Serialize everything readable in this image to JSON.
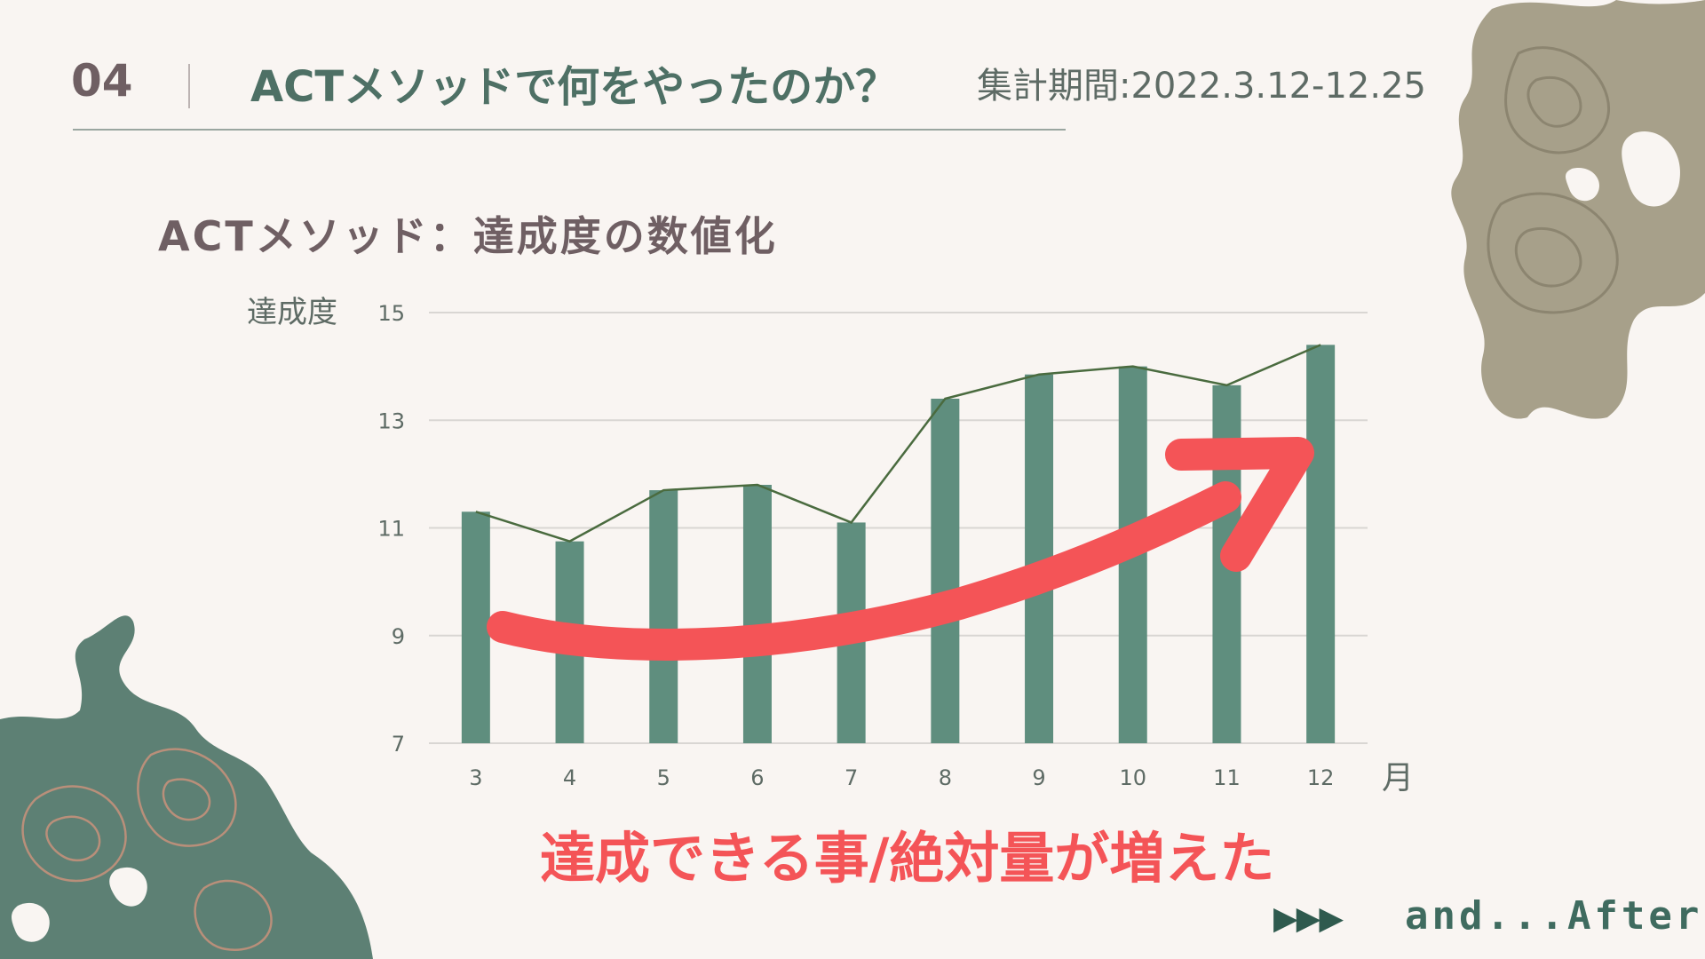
{
  "header": {
    "section_number": "04",
    "title": "ACTメソッドで何をやったのか？",
    "period": "集計期間:2022.3.12-12.25"
  },
  "chart_title": "ACTメソッド：達成度の数値化",
  "chart_data": {
    "type": "bar",
    "categories": [
      "3",
      "4",
      "5",
      "6",
      "7",
      "8",
      "9",
      "10",
      "11",
      "12"
    ],
    "values": [
      11.3,
      10.75,
      11.7,
      11.8,
      11.1,
      13.4,
      13.85,
      14.0,
      13.65,
      14.4
    ],
    "line_overlay": true,
    "ylabel": "達成度",
    "xlabel": "月",
    "ylim": [
      7,
      15
    ],
    "yticks": [
      "7",
      "9",
      "11",
      "13",
      "15"
    ],
    "grid": true,
    "colors": {
      "bar": "#5f8e7e",
      "line": "#4a6b3f",
      "grid": "#d9d6d3",
      "trend_arrow": "#f45457"
    }
  },
  "conclusion": "達成できる事/絶対量が増えた",
  "footer": {
    "next_arrows": "▶▶▶",
    "next_label": "and...After?"
  },
  "decorations": {
    "top_right": "topographic-blob-tan",
    "bottom_left": "topographic-blob-green"
  }
}
